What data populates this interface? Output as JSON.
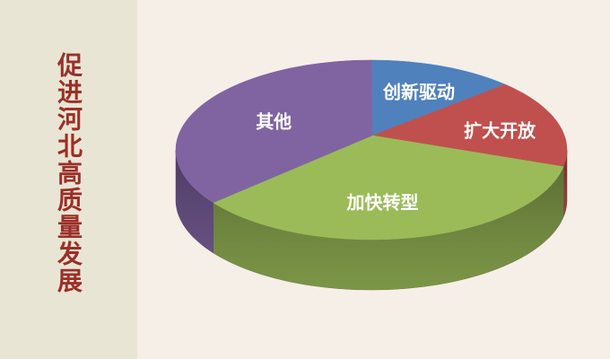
{
  "page": {
    "background_color": "#f5efe8",
    "panel_color": "#e9e5d5",
    "title_color": "#9c2f27"
  },
  "sidebar": {
    "title": "促进河北高质量发展"
  },
  "chart_data": {
    "type": "pie",
    "style": "3d",
    "title": "促进河北高质量发展",
    "legend_position": "none",
    "labels_on_slices": true,
    "start_angle_deg": 90,
    "direction": "clockwise",
    "label_text_color": "#FFFFFF",
    "slices": [
      {
        "label": "创新驱动",
        "value_pct": 12,
        "color": "#4F81BD"
      },
      {
        "label": "扩大开放",
        "value_pct": 16,
        "color": "#C0504D"
      },
      {
        "label": "加快转型",
        "value_pct": 37,
        "color": "#9BBB59"
      },
      {
        "label": "其他",
        "value_pct": 35,
        "color": "#8064A2"
      }
    ]
  }
}
